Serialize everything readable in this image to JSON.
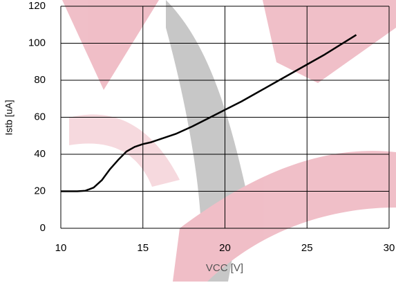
{
  "chart_data": {
    "type": "line",
    "x_label": "VCC [V]",
    "y_label": "Istb [uA]",
    "x": [
      10,
      11,
      11.5,
      12,
      12.5,
      13,
      13.5,
      14,
      14.5,
      15,
      15.5,
      16,
      17,
      18,
      19,
      20,
      21,
      22,
      23,
      24,
      25,
      26,
      27,
      28
    ],
    "series": [
      {
        "name": "Istb",
        "color": "#000000",
        "values": [
          20,
          20,
          20.3,
          22,
          26,
          32,
          37,
          41.5,
          44,
          45.5,
          46.5,
          48,
          51,
          55,
          59.5,
          64,
          68.5,
          73.5,
          78.5,
          83.5,
          88.5,
          93.5,
          99,
          104.5
        ]
      }
    ],
    "xlim": [
      10,
      30
    ],
    "xticks": [
      10,
      15,
      20,
      25,
      30
    ],
    "ylim": [
      0,
      120
    ],
    "yticks": [
      0,
      20,
      40,
      60,
      80,
      100,
      120
    ],
    "grid": true
  }
}
